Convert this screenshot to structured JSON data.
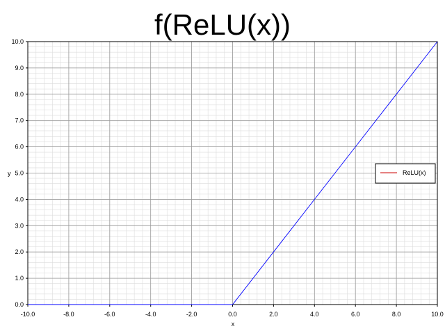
{
  "chart_data": {
    "type": "line",
    "title": "f(ReLU(x))",
    "xlabel": "x",
    "ylabel": "y",
    "xlim": [
      -10,
      10
    ],
    "ylim": [
      0,
      10
    ],
    "x_ticks": [
      "-10.0",
      "-8.0",
      "-6.0",
      "-4.0",
      "-2.0",
      "0.0",
      "2.0",
      "4.0",
      "6.0",
      "8.0",
      "10.0"
    ],
    "y_ticks": [
      "0.0",
      "1.0",
      "2.0",
      "3.0",
      "4.0",
      "5.0",
      "6.0",
      "7.0",
      "8.0",
      "9.0",
      "10.0"
    ],
    "grid": true,
    "legend_position": "right",
    "series": [
      {
        "name": "ReLU(x)",
        "line_color": "#0000ff",
        "legend_color": "#cc0000",
        "x": [
          -10,
          -8,
          -6,
          -4,
          -2,
          0,
          2,
          4,
          6,
          8,
          10
        ],
        "y": [
          0,
          0,
          0,
          0,
          0,
          0,
          2,
          4,
          6,
          8,
          10
        ]
      }
    ]
  }
}
